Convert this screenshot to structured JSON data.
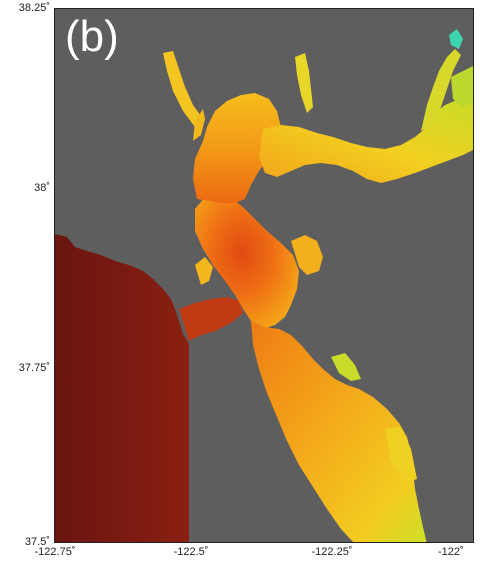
{
  "panel_label": "(b)",
  "axes": {
    "x_ticks": [
      "-122.75˚",
      "-122.5˚",
      "-122.25˚",
      "-122˚"
    ],
    "y_ticks": [
      "38.25˚",
      "38˚",
      "37.75˚",
      "37.5˚"
    ],
    "xlim": [
      -122.75,
      -122.0
    ],
    "ylim": [
      37.5,
      38.25
    ]
  },
  "colors": {
    "land": "#5e5e5e",
    "ocean": "#7a1a12",
    "bay_orange": "#f07a10",
    "bay_red": "#e04c10",
    "bay_yellow": "#f5c81e",
    "bay_green": "#b8d830",
    "bay_cyan": "#40d8b0"
  }
}
